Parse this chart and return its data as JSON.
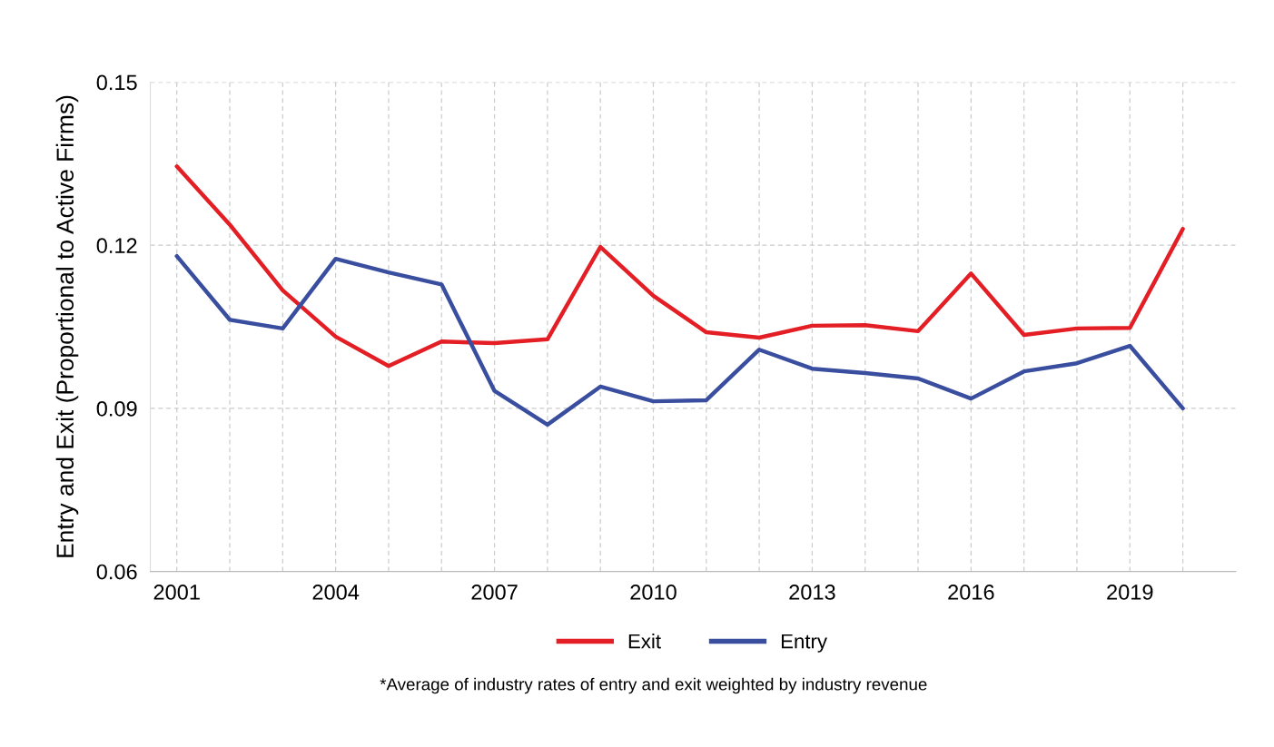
{
  "chart_data": {
    "type": "line",
    "ylabel": "Entry and Exit (Proportional to Active Firms)",
    "x": [
      2001,
      2002,
      2003,
      2004,
      2005,
      2006,
      2007,
      2008,
      2009,
      2010,
      2011,
      2012,
      2013,
      2014,
      2015,
      2016,
      2017,
      2018,
      2019,
      2020
    ],
    "series": [
      {
        "name": "Exit",
        "color": "#e31e24",
        "values": [
          0.1345,
          0.1238,
          0.1117,
          0.1032,
          0.0978,
          0.1023,
          0.102,
          0.1027,
          0.1197,
          0.1107,
          0.104,
          0.103,
          0.1052,
          0.1053,
          0.1042,
          0.1148,
          0.1035,
          0.1047,
          0.1048,
          0.123
        ]
      },
      {
        "name": "Entry",
        "color": "#3a4ea0",
        "values": [
          0.118,
          0.1063,
          0.1047,
          0.1175,
          0.115,
          0.1128,
          0.0932,
          0.087,
          0.094,
          0.0913,
          0.0915,
          0.1008,
          0.0973,
          0.0965,
          0.0955,
          0.0918,
          0.0968,
          0.0983,
          0.1015,
          0.09
        ]
      }
    ],
    "xlim": [
      2000.5,
      2021
    ],
    "xticks": [
      2001,
      {
        "value": 2002,
        "label": null
      },
      {
        "value": 2003,
        "label": null
      },
      2004,
      {
        "value": 2005,
        "label": null
      },
      {
        "value": 2006,
        "label": null
      },
      2007,
      {
        "value": 2008,
        "label": null
      },
      {
        "value": 2009,
        "label": null
      },
      2010,
      {
        "value": 2011,
        "label": null
      },
      {
        "value": 2012,
        "label": null
      },
      2013,
      {
        "value": 2014,
        "label": null
      },
      {
        "value": 2015,
        "label": null
      },
      2016,
      {
        "value": 2017,
        "label": null
      },
      {
        "value": 2018,
        "label": null
      },
      2019,
      {
        "value": 2020,
        "label": null
      }
    ],
    "ylim": [
      0.06,
      0.15
    ],
    "yticks": [
      {
        "value": 0.06,
        "label": "0.06"
      },
      {
        "value": 0.09,
        "label": "0.09"
      },
      {
        "value": 0.12,
        "label": "0.12"
      },
      {
        "value": 0.15,
        "label": "0.15"
      }
    ],
    "grid": true,
    "legend": "bottom",
    "line_style": "solid",
    "marker": "none",
    "annotations": [
      "*Average of industry rates of entry and exit weighted by industry revenue"
    ]
  }
}
